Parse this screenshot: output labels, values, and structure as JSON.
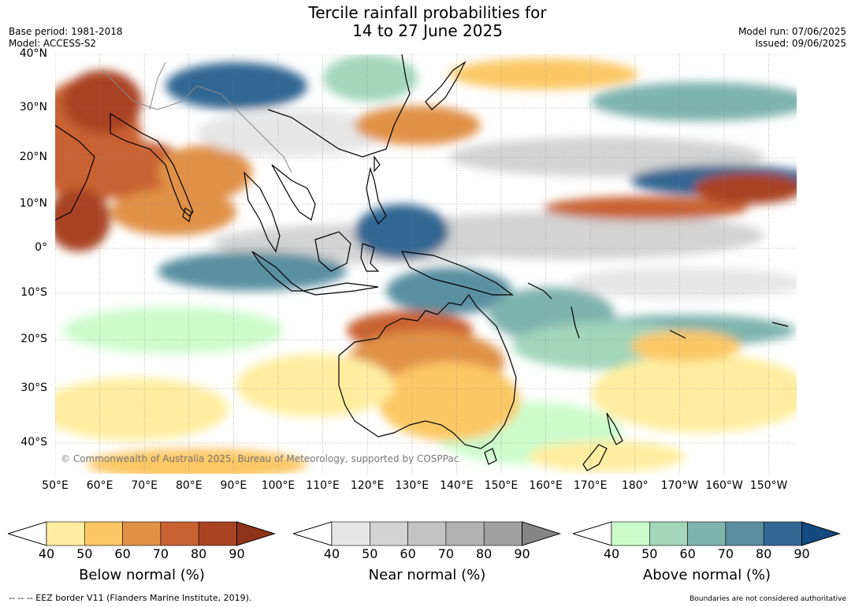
{
  "title_line1": "Tercile rainfall probabilities for",
  "title_line2": "14 to 27 June 2025",
  "meta_left": {
    "base_period": "Base period: 1981-2018",
    "model": "Model: ACCESS-S2"
  },
  "meta_right": {
    "model_run": "Model run: 07/06/2025",
    "issued": "Issued: 09/06/2025"
  },
  "lat_labels": [
    "40°N",
    "30°N",
    "20°N",
    "10°N",
    "0°",
    "10°S",
    "20°S",
    "30°S",
    "40°S"
  ],
  "lon_labels": [
    "50°E",
    "60°E",
    "70°E",
    "80°E",
    "90°E",
    "100°E",
    "110°E",
    "120°E",
    "130°E",
    "140°E",
    "150°E",
    "160°E",
    "170°E",
    "180°",
    "170°W",
    "160°W",
    "150°W"
  ],
  "copyright": "© Commonwealth of Australia 2025, Bureau of Meteorology, supported by COSPPac",
  "legends": [
    {
      "title": "Below normal (%)",
      "ticks": [
        "40",
        "50",
        "60",
        "70",
        "80",
        "90"
      ],
      "colors": [
        "#ffeea0",
        "#fcc865",
        "#e19146",
        "#c96232",
        "#a94322"
      ],
      "end_color": "#8e3418"
    },
    {
      "title": "Near normal (%)",
      "ticks": [
        "40",
        "50",
        "60",
        "70",
        "80",
        "90"
      ],
      "colors": [
        "#e6e6e6",
        "#d3d3d3",
        "#c3c3c3",
        "#b2b2b2",
        "#a0a0a0"
      ],
      "end_color": "#868686"
    },
    {
      "title": "Above normal (%)",
      "ticks": [
        "40",
        "50",
        "60",
        "70",
        "80",
        "90"
      ],
      "colors": [
        "#ccfccc",
        "#a3d6bb",
        "#7fb4ad",
        "#5a8fa0",
        "#326693"
      ],
      "end_color": "#144a80"
    }
  ],
  "footnote_left": "--  --  -- EEZ border V11 (Flanders Marine Institute, 2019).",
  "footnote_right": "Boundaries are not considered authoritative"
}
